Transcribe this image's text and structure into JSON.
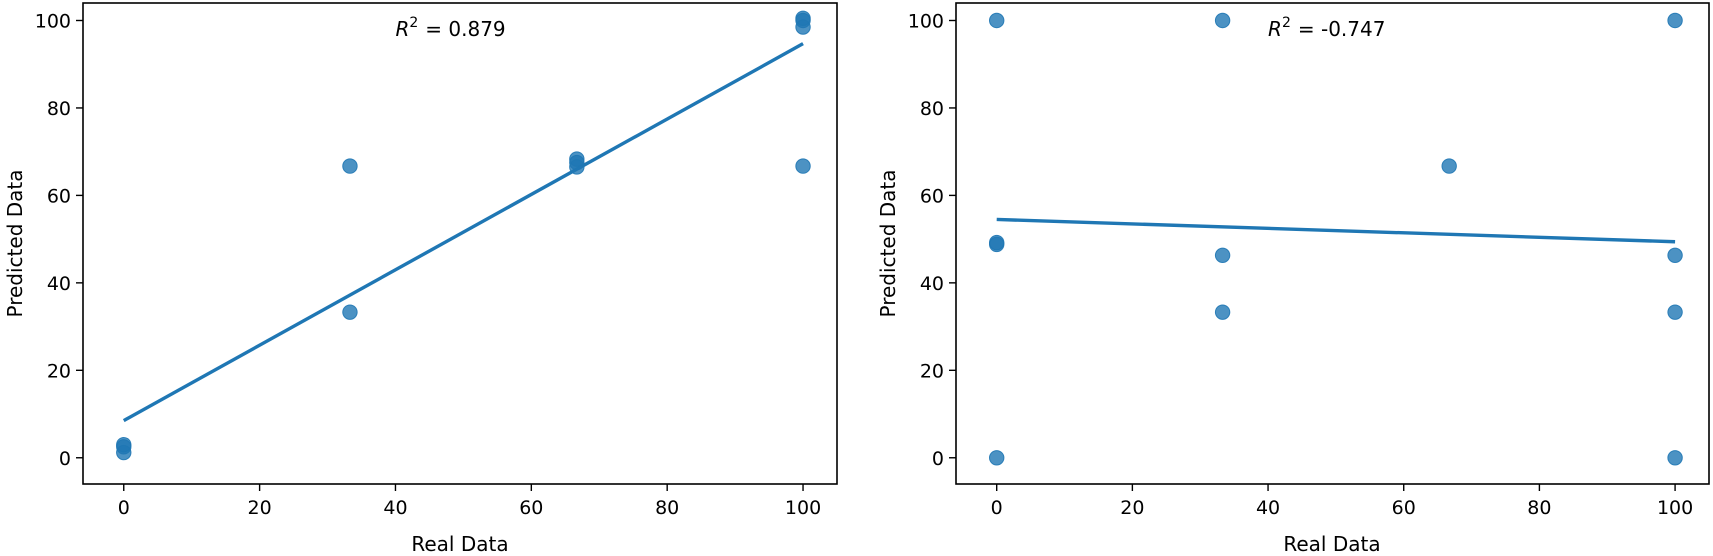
{
  "chart_data": [
    {
      "type": "scatter",
      "title": "",
      "xlabel": "Real Data",
      "ylabel": "Predicted Data",
      "xlim": [
        -6,
        105
      ],
      "ylim": [
        -6,
        104
      ],
      "xticks": [
        0,
        20,
        40,
        60,
        80,
        100
      ],
      "yticks": [
        0,
        20,
        40,
        60,
        80,
        100
      ],
      "grid": false,
      "annotation": {
        "r2_symbol": "R",
        "r2_sup": "2",
        "r2_value": "= 0.879",
        "x": 40,
        "y": 96.5
      },
      "series": [
        {
          "kind": "points",
          "color": "#1f77b4",
          "x": [
            0,
            0,
            0,
            33.3,
            33.3,
            66.7,
            66.7,
            66.7,
            100,
            100,
            100,
            100
          ],
          "y": [
            1.2,
            2.5,
            3.0,
            33.3,
            66.7,
            66.5,
            67.5,
            68.3,
            66.7,
            98.5,
            100,
            100.5
          ]
        },
        {
          "kind": "fit-line",
          "color": "#1f77b4",
          "x": [
            0,
            100
          ],
          "y": [
            8.5,
            94.7
          ]
        }
      ]
    },
    {
      "type": "scatter",
      "title": "",
      "xlabel": "Real Data",
      "ylabel": "Predicted Data",
      "xlim": [
        -6,
        105
      ],
      "ylim": [
        -6,
        104
      ],
      "xticks": [
        0,
        20,
        40,
        60,
        80,
        100
      ],
      "yticks": [
        0,
        20,
        40,
        60,
        80,
        100
      ],
      "grid": false,
      "annotation": {
        "r2_symbol": "R",
        "r2_sup": "2",
        "r2_value": "= -0.747",
        "x": 40,
        "y": 96.5
      },
      "series": [
        {
          "kind": "points",
          "color": "#1f77b4",
          "x": [
            0,
            0,
            0,
            0,
            33.3,
            33.3,
            33.3,
            66.7,
            100,
            100,
            100,
            100
          ],
          "y": [
            0,
            48.8,
            49.2,
            100,
            33.3,
            46.3,
            100,
            66.7,
            0,
            33.3,
            46.3,
            100
          ]
        },
        {
          "kind": "fit-line",
          "color": "#1f77b4",
          "x": [
            0,
            100
          ],
          "y": [
            54.5,
            49.4
          ]
        }
      ]
    }
  ]
}
